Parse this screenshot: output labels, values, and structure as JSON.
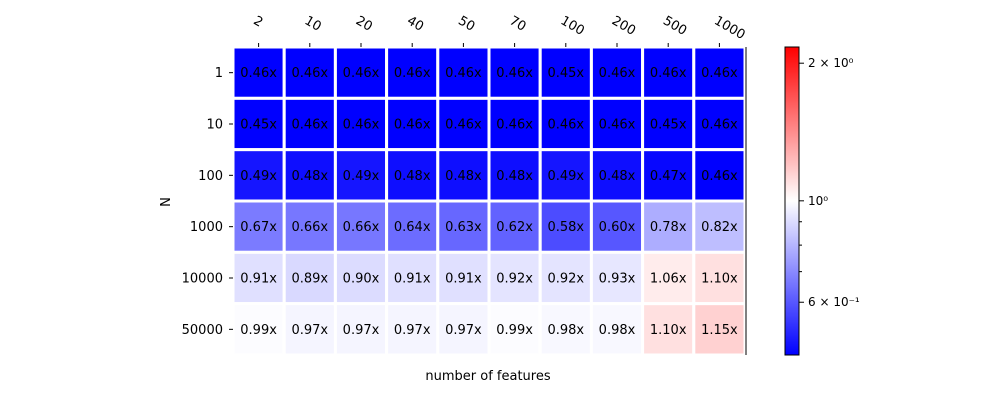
{
  "chart_data": {
    "type": "heatmap",
    "title": "",
    "xlabel": "number of features",
    "ylabel": "N",
    "x_categories": [
      "2",
      "10",
      "20",
      "40",
      "50",
      "70",
      "100",
      "200",
      "500",
      "1000"
    ],
    "y_categories": [
      "1",
      "10",
      "100",
      "1000",
      "10000",
      "50000"
    ],
    "values": [
      [
        0.46,
        0.46,
        0.46,
        0.46,
        0.46,
        0.46,
        0.45,
        0.46,
        0.46,
        0.46
      ],
      [
        0.45,
        0.46,
        0.46,
        0.46,
        0.46,
        0.46,
        0.46,
        0.46,
        0.45,
        0.46
      ],
      [
        0.49,
        0.48,
        0.49,
        0.48,
        0.48,
        0.48,
        0.49,
        0.48,
        0.47,
        0.46
      ],
      [
        0.67,
        0.66,
        0.66,
        0.64,
        0.63,
        0.62,
        0.58,
        0.6,
        0.78,
        0.82
      ],
      [
        0.91,
        0.89,
        0.9,
        0.91,
        0.91,
        0.92,
        0.92,
        0.93,
        1.06,
        1.1
      ],
      [
        0.99,
        0.97,
        0.97,
        0.97,
        0.97,
        0.99,
        0.98,
        0.98,
        1.1,
        1.15
      ]
    ],
    "cell_labels": [
      [
        "0.46x",
        "0.46x",
        "0.46x",
        "0.46x",
        "0.46x",
        "0.46x",
        "0.45x",
        "0.46x",
        "0.46x",
        "0.46x"
      ],
      [
        "0.45x",
        "0.46x",
        "0.46x",
        "0.46x",
        "0.46x",
        "0.46x",
        "0.46x",
        "0.46x",
        "0.45x",
        "0.46x"
      ],
      [
        "0.49x",
        "0.48x",
        "0.49x",
        "0.48x",
        "0.48x",
        "0.48x",
        "0.49x",
        "0.48x",
        "0.47x",
        "0.46x"
      ],
      [
        "0.67x",
        "0.66x",
        "0.66x",
        "0.64x",
        "0.63x",
        "0.62x",
        "0.58x",
        "0.60x",
        "0.78x",
        "0.82x"
      ],
      [
        "0.91x",
        "0.89x",
        "0.90x",
        "0.91x",
        "0.91x",
        "0.92x",
        "0.92x",
        "0.93x",
        "1.06x",
        "1.10x"
      ],
      [
        "0.99x",
        "0.97x",
        "0.97x",
        "0.97x",
        "0.97x",
        "0.99x",
        "0.98x",
        "0.98x",
        "1.10x",
        "1.15x"
      ]
    ],
    "colormap": "bwr",
    "colors": {
      "low": "#0000ff",
      "mid": "#ffffff",
      "high": "#ff0000",
      "cell_border": "#ffffff"
    },
    "color_scale": "log",
    "color_range": [
      0.46,
      2.17
    ],
    "colorbar": {
      "major_ticks": [
        {
          "value": 2,
          "label": "2 × 10⁰"
        },
        {
          "value": 1,
          "label": "10⁰"
        },
        {
          "value": 0.6,
          "label": "6 × 10⁻¹"
        }
      ],
      "minor_ticks": [
        0.7,
        0.8,
        0.9
      ]
    },
    "x_tick_position": "top",
    "x_tick_rotation_deg": 30
  }
}
